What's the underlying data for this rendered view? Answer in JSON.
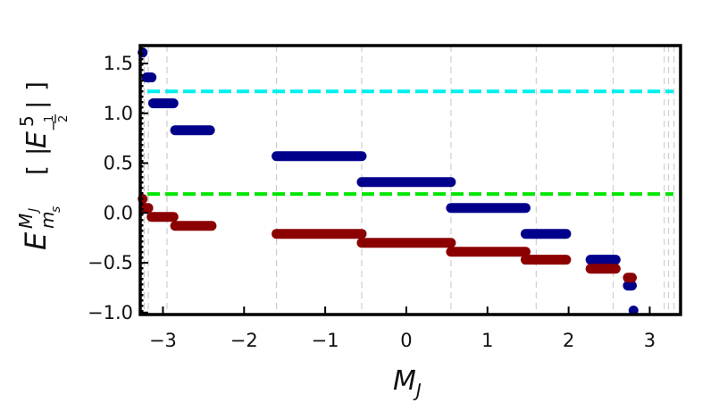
{
  "chart_data": {
    "type": "scatter",
    "xlabel": {
      "main": "M",
      "sub": "J"
    },
    "ylabel": {
      "E": "E",
      "E_sup": "M",
      "E_sup_sub": "J",
      "E_sub": "m",
      "E_sub_sub": "s",
      "bracket_open": "[",
      "bracket_close": "]",
      "abs_bar": "|",
      "E_inner": "E",
      "num": "5",
      "den_minus": "−",
      "den_frac_num": "1",
      "den_frac_den": "2"
    },
    "xlim": [
      -3.28,
      3.38
    ],
    "ylim": [
      -1.02,
      1.68
    ],
    "yticks": [
      {
        "v": 1.5,
        "label": "1.5"
      },
      {
        "v": 1.0,
        "label": "1.0"
      },
      {
        "v": 0.5,
        "label": "0.5"
      },
      {
        "v": 0.0,
        "label": "0.0"
      },
      {
        "v": -0.5,
        "label": "−0.5"
      },
      {
        "v": -1.0,
        "label": "−1.0"
      }
    ],
    "xticks": [
      {
        "v": -3,
        "label": "−3"
      },
      {
        "v": -2,
        "label": "−2"
      },
      {
        "v": -1,
        "label": "−1"
      },
      {
        "v": 0,
        "label": "0"
      },
      {
        "v": 1,
        "label": "1"
      },
      {
        "v": 2,
        "label": "2"
      },
      {
        "v": 3,
        "label": "3"
      }
    ],
    "dashed_gridlines_x": [
      -3.23,
      -3.18,
      -2.95,
      -1.6,
      -0.55,
      0.55,
      1.6,
      2.55,
      3.18,
      3.23,
      3.3
    ],
    "reference_lines": [
      {
        "y": 1.22,
        "color": "#00f0f0"
      },
      {
        "y": 0.19,
        "color": "#00e600"
      }
    ],
    "series": [
      {
        "color": "#00008b",
        "segments": [
          {
            "x": [
              -3.25,
              -3.25
            ],
            "y": 1.61
          },
          {
            "x": [
              -3.2,
              -3.14
            ],
            "y": 1.36
          },
          {
            "x": [
              -3.12,
              -2.87
            ],
            "y": 1.1
          },
          {
            "x": [
              -2.85,
              -2.42
            ],
            "y": 0.83
          },
          {
            "x": [
              -1.6,
              -0.55
            ],
            "y": 0.57
          },
          {
            "x": [
              -0.55,
              0.55
            ],
            "y": 0.31
          },
          {
            "x": [
              0.55,
              1.47
            ],
            "y": 0.05
          },
          {
            "x": [
              1.47,
              1.97
            ],
            "y": -0.21
          },
          {
            "x": [
              2.27,
              2.58
            ],
            "y": -0.47
          },
          {
            "x": [
              2.73,
              2.78
            ],
            "y": -0.73
          },
          {
            "x": [
              2.8,
              2.8
            ],
            "y": -0.98
          }
        ]
      },
      {
        "color": "#8b0000",
        "segments": [
          {
            "x": [
              -3.25,
              -3.25
            ],
            "y": 0.14
          },
          {
            "x": [
              -3.22,
              -3.18
            ],
            "y": 0.05
          },
          {
            "x": [
              -3.14,
              -2.87
            ],
            "y": -0.04
          },
          {
            "x": [
              -2.85,
              -2.4
            ],
            "y": -0.13
          },
          {
            "x": [
              -1.6,
              -0.55
            ],
            "y": -0.21
          },
          {
            "x": [
              -0.55,
              0.55
            ],
            "y": -0.3
          },
          {
            "x": [
              0.55,
              1.47
            ],
            "y": -0.39
          },
          {
            "x": [
              1.47,
              1.97
            ],
            "y": -0.47
          },
          {
            "x": [
              2.27,
              2.58
            ],
            "y": -0.56
          },
          {
            "x": [
              2.73,
              2.78
            ],
            "y": -0.65
          }
        ]
      }
    ]
  }
}
